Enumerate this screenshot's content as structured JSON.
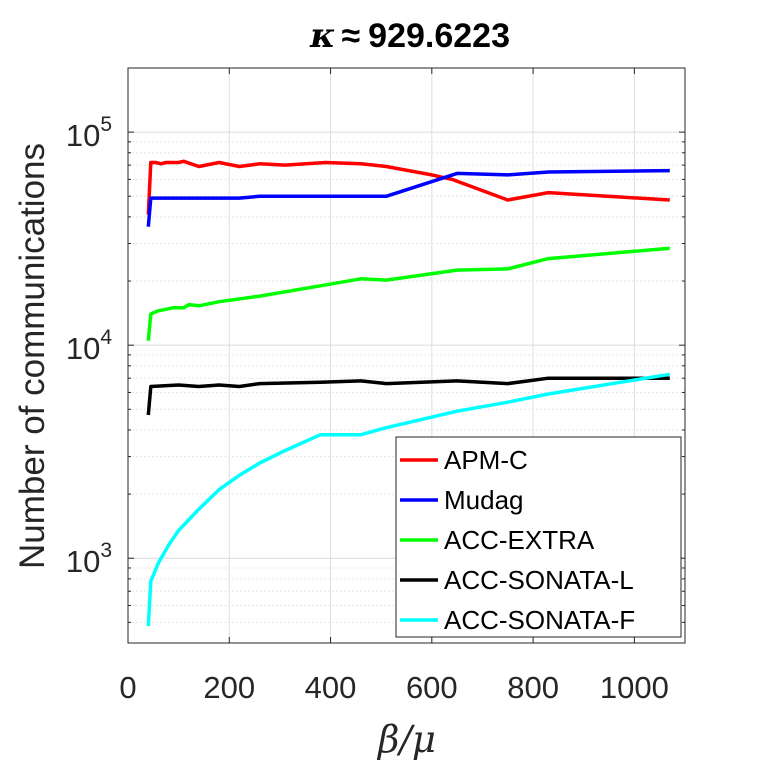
{
  "chart_data": {
    "type": "line",
    "title": {
      "symbol": "κ",
      "relation": "≈",
      "value": "929.6223"
    },
    "xlabel": "β/μ",
    "ylabel": "Number of communications",
    "xlim": [
      0,
      1100
    ],
    "ylim": [
      400,
      200000
    ],
    "yscale": "log",
    "x_ticks": [
      0,
      200,
      400,
      600,
      800,
      1000
    ],
    "x_tick_labels": [
      "0",
      "200",
      "400",
      "600",
      "800",
      "1000"
    ],
    "y_ticks": [
      1000,
      10000,
      100000
    ],
    "y_tick_labels": [
      {
        "base": "10",
        "exp": "3"
      },
      {
        "base": "10",
        "exp": "4"
      },
      {
        "base": "10",
        "exp": "5"
      }
    ],
    "grid": true,
    "legend_position": "bottom-right",
    "series": [
      {
        "name": "APM-C",
        "color": "#ff0000",
        "points": [
          [
            40,
            41000
          ],
          [
            45,
            72000
          ],
          [
            55,
            72000
          ],
          [
            65,
            71000
          ],
          [
            75,
            72000
          ],
          [
            100,
            72000
          ],
          [
            110,
            73000
          ],
          [
            140,
            69000
          ],
          [
            180,
            72000
          ],
          [
            220,
            69000
          ],
          [
            260,
            71000
          ],
          [
            310,
            70000
          ],
          [
            390,
            72000
          ],
          [
            460,
            71000
          ],
          [
            510,
            69000
          ],
          [
            600,
            63000
          ],
          [
            640,
            60000
          ],
          [
            750,
            48000
          ],
          [
            830,
            52000
          ],
          [
            1070,
            48000
          ]
        ]
      },
      {
        "name": "Mudag",
        "color": "#0000ff",
        "points": [
          [
            40,
            36000
          ],
          [
            45,
            49000
          ],
          [
            140,
            49000
          ],
          [
            220,
            49000
          ],
          [
            260,
            50000
          ],
          [
            460,
            50000
          ],
          [
            510,
            50000
          ],
          [
            650,
            64000
          ],
          [
            750,
            63000
          ],
          [
            830,
            65000
          ],
          [
            1070,
            66000
          ]
        ]
      },
      {
        "name": "ACC-EXTRA",
        "color": "#00ff00",
        "points": [
          [
            40,
            10500
          ],
          [
            45,
            14000
          ],
          [
            60,
            14500
          ],
          [
            90,
            15000
          ],
          [
            110,
            15000
          ],
          [
            120,
            15500
          ],
          [
            140,
            15300
          ],
          [
            180,
            16000
          ],
          [
            260,
            17000
          ],
          [
            380,
            19000
          ],
          [
            460,
            20500
          ],
          [
            510,
            20200
          ],
          [
            650,
            22500
          ],
          [
            750,
            22800
          ],
          [
            830,
            25500
          ],
          [
            1070,
            28500
          ]
        ]
      },
      {
        "name": "ACC-SONATA-L",
        "color": "#000000",
        "points": [
          [
            40,
            4700
          ],
          [
            45,
            6400
          ],
          [
            100,
            6500
          ],
          [
            140,
            6400
          ],
          [
            180,
            6500
          ],
          [
            220,
            6400
          ],
          [
            260,
            6600
          ],
          [
            380,
            6700
          ],
          [
            460,
            6800
          ],
          [
            510,
            6600
          ],
          [
            650,
            6800
          ],
          [
            750,
            6600
          ],
          [
            830,
            7000
          ],
          [
            1070,
            7000
          ]
        ]
      },
      {
        "name": "ACC-SONATA-F",
        "color": "#00ffff",
        "points": [
          [
            40,
            480
          ],
          [
            45,
            780
          ],
          [
            60,
            950
          ],
          [
            80,
            1150
          ],
          [
            100,
            1350
          ],
          [
            140,
            1700
          ],
          [
            180,
            2100
          ],
          [
            220,
            2450
          ],
          [
            260,
            2800
          ],
          [
            310,
            3200
          ],
          [
            380,
            3800
          ],
          [
            460,
            3800
          ],
          [
            510,
            4100
          ],
          [
            650,
            4900
          ],
          [
            750,
            5400
          ],
          [
            830,
            5900
          ],
          [
            1070,
            7300
          ]
        ]
      }
    ]
  }
}
